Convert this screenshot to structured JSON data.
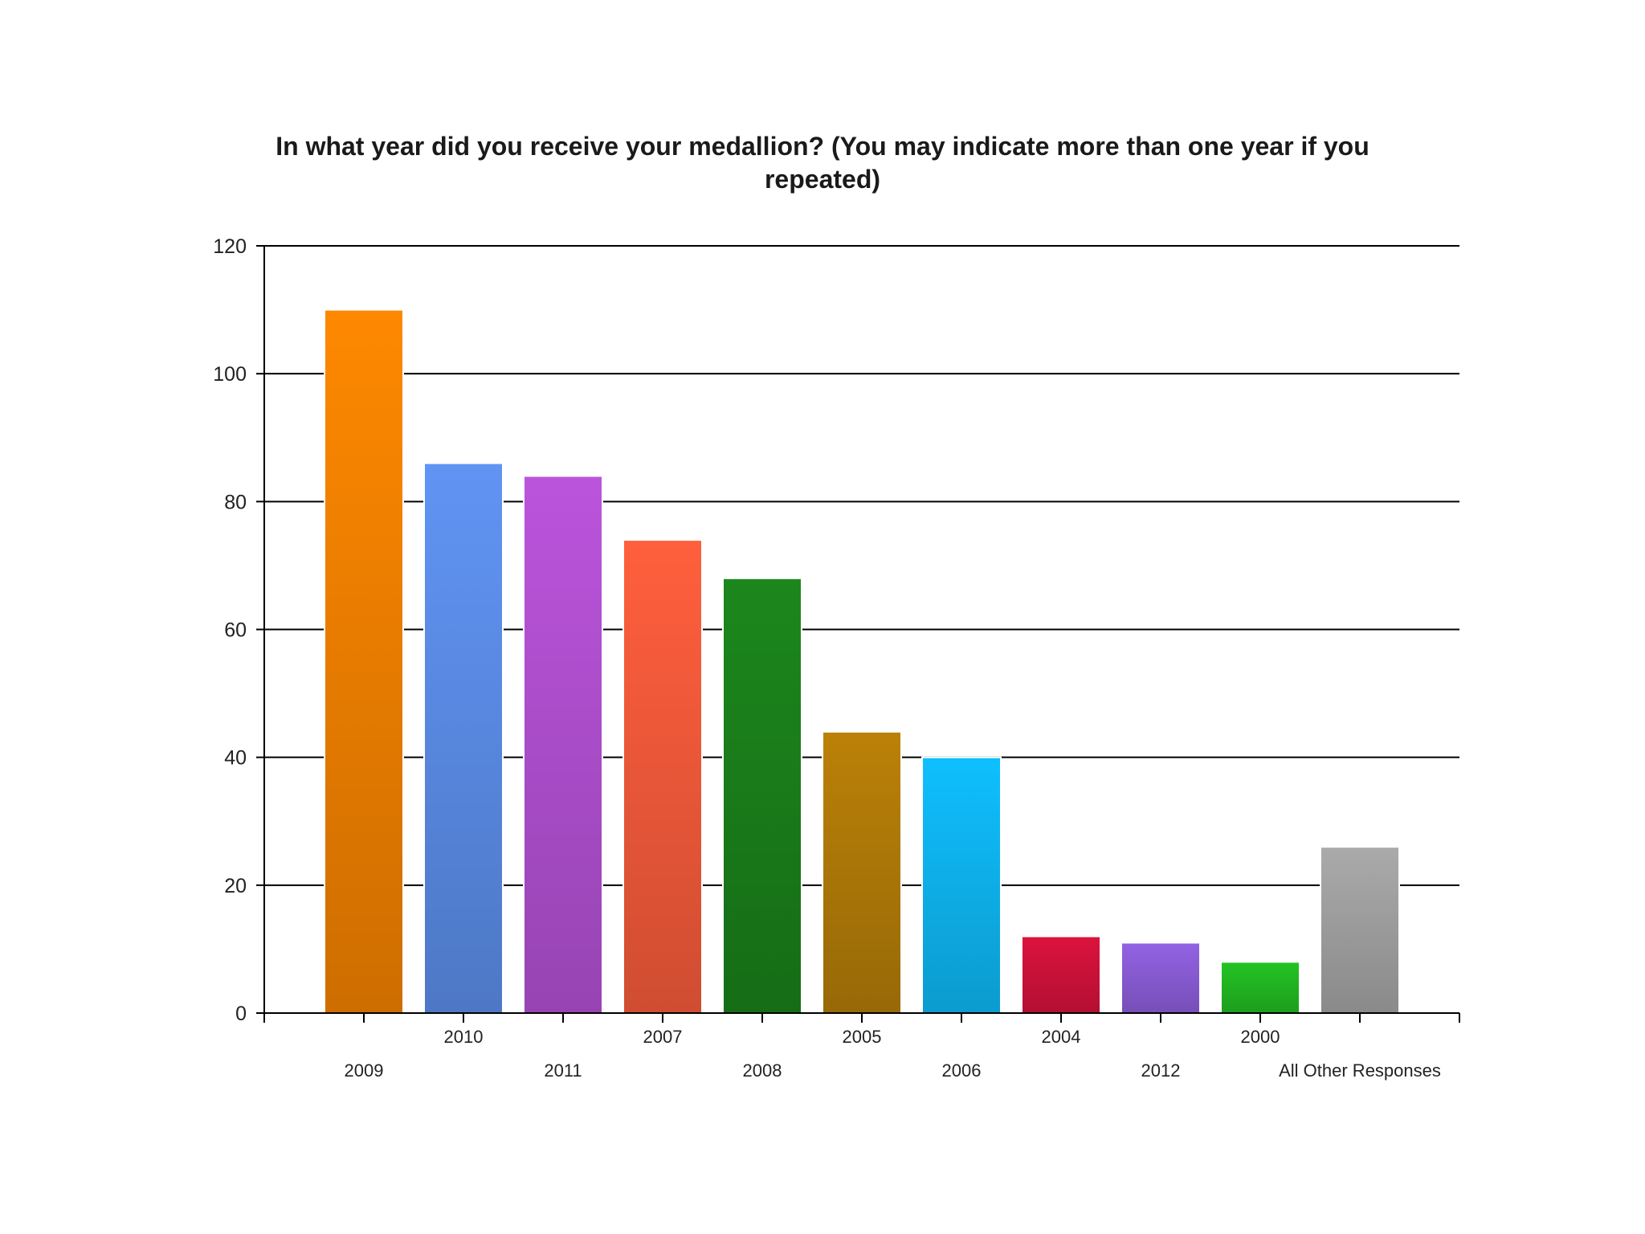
{
  "chart_data": {
    "type": "bar",
    "title": "In what year did you receive your medallion? (You may indicate more than one year if you repeated)",
    "xlabel": "",
    "ylabel": "",
    "categories": [
      "2009",
      "2010",
      "2011",
      "2007",
      "2008",
      "2005",
      "2006",
      "2004",
      "2012",
      "2000",
      "All Other Responses"
    ],
    "values": [
      110,
      86,
      84,
      74,
      68,
      44,
      40,
      12,
      11,
      8,
      26
    ],
    "colors": [
      "#f08000",
      "#5b8ce6",
      "#b04fd0",
      "#f25a3a",
      "#1a7f1a",
      "#b07a08",
      "#0eb4f0",
      "#d0123a",
      "#8a5cd6",
      "#22b822",
      "#a0a0a0"
    ],
    "ylim": [
      0,
      120
    ],
    "yticks": [
      "0",
      "20",
      "40",
      "60",
      "80",
      "100",
      "120"
    ],
    "grid": true,
    "legend": "none"
  }
}
